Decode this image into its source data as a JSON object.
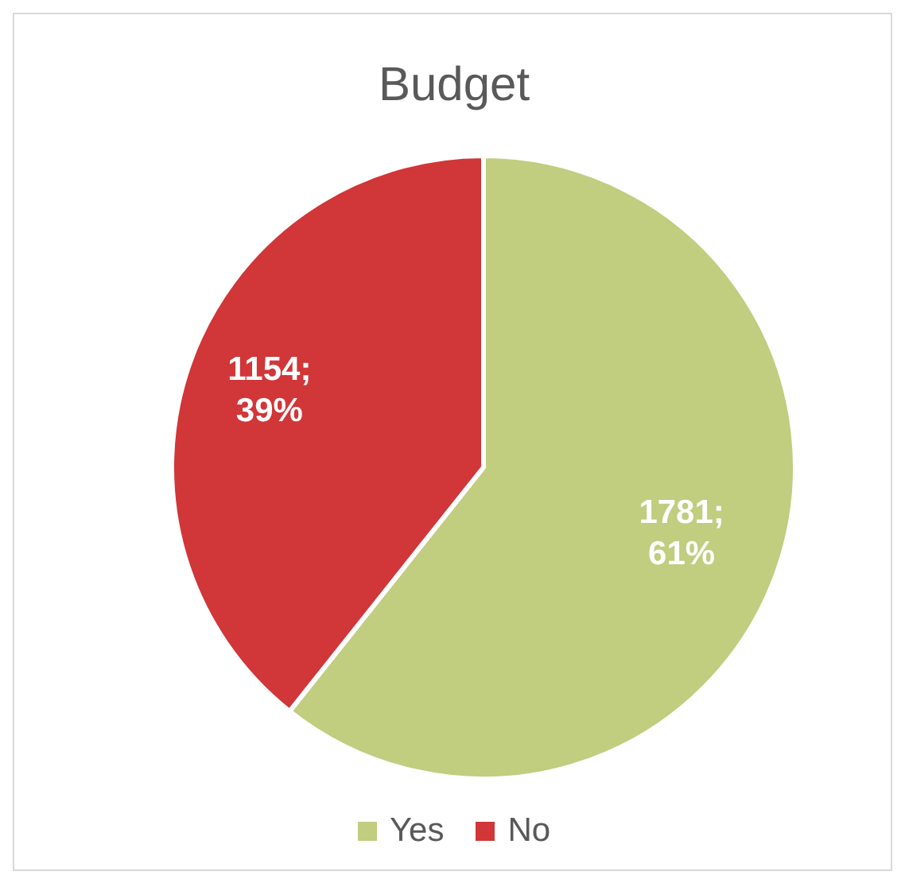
{
  "chart_data": {
    "type": "pie",
    "title": "Budget",
    "categories": [
      "Yes",
      "No"
    ],
    "values": [
      1781,
      1154
    ],
    "colors": [
      "#c1cd7f",
      "#d13638"
    ],
    "value_labels": [
      "1781; 61%",
      "1154; 39%"
    ],
    "legend": "bottom"
  }
}
